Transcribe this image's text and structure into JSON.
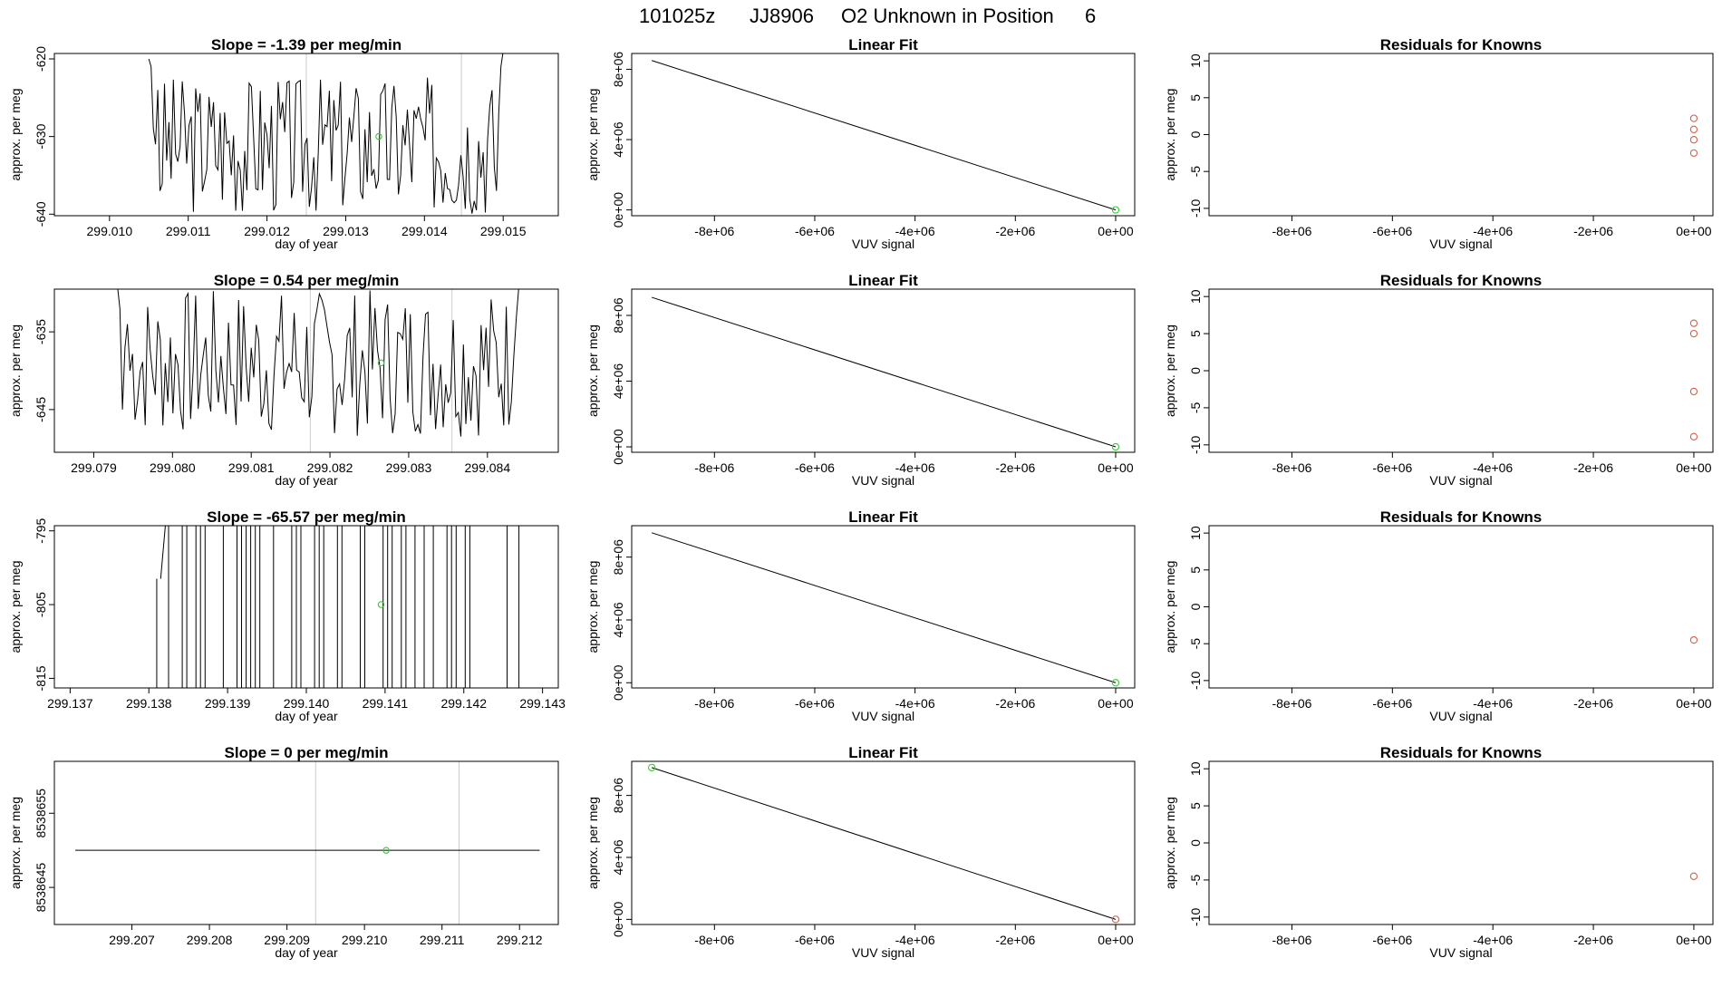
{
  "figure": {
    "title_parts": [
      "101025z",
      "JJ8906",
      "O2 Unknown in Position",
      "6"
    ]
  },
  "colors": {
    "line": "#000000",
    "known_point": "#d0604a",
    "green_point": "#33cc33",
    "gridline": "#cccccc"
  },
  "chart_data": [
    {
      "type": "line",
      "title": "Slope =  -1.39  per meg/min",
      "xlabel": "day of year",
      "ylabel": "approx. per meg",
      "xlim": [
        299.0093,
        299.0157
      ],
      "ylim": [
        -640.2,
        -619.3
      ],
      "xticks": [
        "299.010",
        "299.011",
        "299.012",
        "299.013",
        "299.014",
        "299.015"
      ],
      "yticks": [
        "-640",
        "-630",
        "-620"
      ],
      "vlines": [
        299.0125,
        299.01447
      ],
      "green_point": {
        "x": 299.01342,
        "y": -630
      },
      "trace": {
        "x_start": 299.0105,
        "x_end": 299.015,
        "center": -631,
        "amp": 9,
        "seed": 3,
        "head": [
          -620,
          -621,
          -629,
          -631,
          -624,
          -637
        ],
        "tail": [
          -637,
          -627,
          -621,
          -619
        ]
      }
    },
    {
      "type": "line",
      "title": "Slope =  0.54  per meg/min",
      "xlabel": "day of year",
      "ylabel": "approx. per meg",
      "xlim": [
        299.0785,
        299.0849
      ],
      "ylim": [
        -650.5,
        -629.5
      ],
      "xticks": [
        "299.079",
        "299.080",
        "299.081",
        "299.082",
        "299.083",
        "299.084"
      ],
      "yticks": [
        "-645",
        "-635"
      ],
      "vlines": [
        299.08175,
        299.08355
      ],
      "green_point": {
        "x": 299.08265,
        "y": -639
      },
      "trace": {
        "x_start": 299.0793,
        "x_end": 299.0844,
        "center": -639,
        "amp": 9.5,
        "seed": 7,
        "head": [
          -629,
          -632,
          -645,
          -637,
          -634,
          -640
        ],
        "tail": [
          -644,
          -638,
          -633,
          -629
        ]
      }
    },
    {
      "type": "line",
      "title": "Slope =  -65.57  per meg/min",
      "xlabel": "day of year",
      "ylabel": "approx. per meg",
      "xlim": [
        299.1368,
        299.1432
      ],
      "ylim": [
        -816.3,
        -794.3
      ],
      "xticks": [
        "299.137",
        "299.138",
        "299.139",
        "299.140",
        "299.141",
        "299.142",
        "299.143"
      ],
      "yticks": [
        "-815",
        "-805",
        "-795"
      ],
      "vlines": [],
      "green_point": {
        "x": 299.14095,
        "y": -805
      },
      "segments": [
        [
          [
            299.13815,
            -801.5
          ],
          [
            299.13822,
            -793
          ]
        ],
        [
          [
            299.1381,
            -816.5
          ],
          [
            299.1381,
            -801.5
          ]
        ]
      ],
      "trace": {
        "x_start": 299.13825,
        "x_end": 299.14225,
        "center": -805,
        "amp": 15,
        "seed": 11,
        "square": true,
        "head": [],
        "tail": []
      },
      "tail_segments": [
        [
          [
            299.14255,
            -816.5
          ],
          [
            299.14255,
            -793
          ]
        ],
        [
          [
            299.1427,
            -816.5
          ],
          [
            299.1427,
            -793
          ]
        ]
      ]
    },
    {
      "type": "line",
      "title": "Slope =  0  per meg/min",
      "xlabel": "day of year",
      "ylabel": "approx. per meg",
      "xlim": [
        299.206,
        299.2125
      ],
      "ylim": [
        8538640,
        8538662
      ],
      "xticks": [
        "299.207",
        "299.208",
        "299.209",
        "299.210",
        "299.211",
        "299.212"
      ],
      "yticks": [
        "8538645",
        "8538655"
      ],
      "vlines": [
        299.20937,
        299.21122
      ],
      "green_point": {
        "x": 299.21028,
        "y": 8538650
      },
      "flat": {
        "x_start": 299.20627,
        "x_end": 299.21226,
        "y": 8538650
      }
    },
    {
      "type": "scatter",
      "title": "Linear Fit",
      "xlabel": "VUV signal",
      "ylabel": "approx. per meg",
      "xlim": [
        -9650000,
        380000
      ],
      "ylim": [
        -330000,
        8900000
      ],
      "xticks": [
        "-8e+06",
        "-6e+06",
        "-4e+06",
        "-2e+06",
        "0e+00"
      ],
      "yticks": [
        "0e+00",
        "4e+06",
        "8e+06"
      ],
      "fit_line": [
        [
          -9250000,
          8500000
        ],
        [
          0,
          0
        ]
      ],
      "points": [
        {
          "x": 0,
          "y": 0,
          "kind": "green"
        }
      ]
    },
    {
      "type": "scatter",
      "title": "Linear Fit",
      "xlabel": "VUV signal",
      "ylabel": "approx. per meg",
      "xlim": [
        -9650000,
        380000
      ],
      "ylim": [
        -330000,
        9600000
      ],
      "xticks": [
        "-8e+06",
        "-6e+06",
        "-4e+06",
        "-2e+06",
        "0e+00"
      ],
      "yticks": [
        "0e+00",
        "4e+06",
        "8e+06"
      ],
      "fit_line": [
        [
          -9250000,
          9100000
        ],
        [
          0,
          0
        ]
      ],
      "points": [
        {
          "x": 0,
          "y": 0,
          "kind": "green"
        }
      ]
    },
    {
      "type": "scatter",
      "title": "Linear Fit",
      "xlabel": "VUV signal",
      "ylabel": "approx. per meg",
      "xlim": [
        -9650000,
        380000
      ],
      "ylim": [
        -330000,
        10000000
      ],
      "xticks": [
        "-8e+06",
        "-6e+06",
        "-4e+06",
        "-2e+06",
        "0e+00"
      ],
      "yticks": [
        "0e+00",
        "4e+06",
        "8e+06"
      ],
      "fit_line": [
        [
          -9250000,
          9550000
        ],
        [
          0,
          0
        ]
      ],
      "points": [
        {
          "x": 0,
          "y": 0,
          "kind": "green"
        }
      ]
    },
    {
      "type": "scatter",
      "title": "Linear Fit",
      "xlabel": "VUV signal",
      "ylabel": "approx. per meg",
      "xlim": [
        -9650000,
        380000
      ],
      "ylim": [
        -330000,
        10200000
      ],
      "xticks": [
        "-8e+06",
        "-6e+06",
        "-4e+06",
        "-2e+06",
        "0e+00"
      ],
      "yticks": [
        "0e+00",
        "4e+06",
        "8e+06"
      ],
      "fit_line": [
        [
          -9250000,
          9800000
        ],
        [
          0,
          0
        ]
      ],
      "points": [
        {
          "x": -9250000,
          "y": 9800000,
          "kind": "green"
        },
        {
          "x": 0,
          "y": 0,
          "kind": "known"
        }
      ]
    },
    {
      "type": "scatter",
      "title": "Residuals for Knowns",
      "xlabel": "VUV signal",
      "ylabel": "approx. per meg",
      "xlim": [
        -9650000,
        380000
      ],
      "ylim": [
        -11,
        11
      ],
      "xticks": [
        "-8e+06",
        "-6e+06",
        "-4e+06",
        "-2e+06",
        "0e+00"
      ],
      "yticks": [
        "-10",
        "-5",
        "0",
        "5",
        "10"
      ],
      "points": [
        {
          "x": 0,
          "y": 2.2,
          "kind": "known"
        },
        {
          "x": 0,
          "y": 0.7,
          "kind": "known"
        },
        {
          "x": 0,
          "y": -0.7,
          "kind": "known"
        },
        {
          "x": 0,
          "y": -2.5,
          "kind": "known"
        }
      ]
    },
    {
      "type": "scatter",
      "title": "Residuals for Knowns",
      "xlabel": "VUV signal",
      "ylabel": "approx. per meg",
      "xlim": [
        -9650000,
        380000
      ],
      "ylim": [
        -11,
        11
      ],
      "xticks": [
        "-8e+06",
        "-6e+06",
        "-4e+06",
        "-2e+06",
        "0e+00"
      ],
      "yticks": [
        "-10",
        "-5",
        "0",
        "5",
        "10"
      ],
      "points": [
        {
          "x": 0,
          "y": 6.4,
          "kind": "known"
        },
        {
          "x": 0,
          "y": 5.0,
          "kind": "known"
        },
        {
          "x": 0,
          "y": -2.8,
          "kind": "known"
        },
        {
          "x": 0,
          "y": -8.9,
          "kind": "known"
        }
      ]
    },
    {
      "type": "scatter",
      "title": "Residuals for Knowns",
      "xlabel": "VUV signal",
      "ylabel": "approx. per meg",
      "xlim": [
        -9650000,
        380000
      ],
      "ylim": [
        -11,
        11
      ],
      "xticks": [
        "-8e+06",
        "-6e+06",
        "-4e+06",
        "-2e+06",
        "0e+00"
      ],
      "yticks": [
        "-10",
        "-5",
        "0",
        "5",
        "10"
      ],
      "points": [
        {
          "x": 0,
          "y": -4.5,
          "kind": "known"
        }
      ]
    },
    {
      "type": "scatter",
      "title": "Residuals for Knowns",
      "xlabel": "VUV signal",
      "ylabel": "approx. per meg",
      "xlim": [
        -9650000,
        380000
      ],
      "ylim": [
        -11,
        11
      ],
      "xticks": [
        "-8e+06",
        "-6e+06",
        "-4e+06",
        "-2e+06",
        "0e+00"
      ],
      "yticks": [
        "-10",
        "-5",
        "0",
        "5",
        "10"
      ],
      "points": [
        {
          "x": 0,
          "y": -4.5,
          "kind": "known"
        }
      ]
    }
  ]
}
